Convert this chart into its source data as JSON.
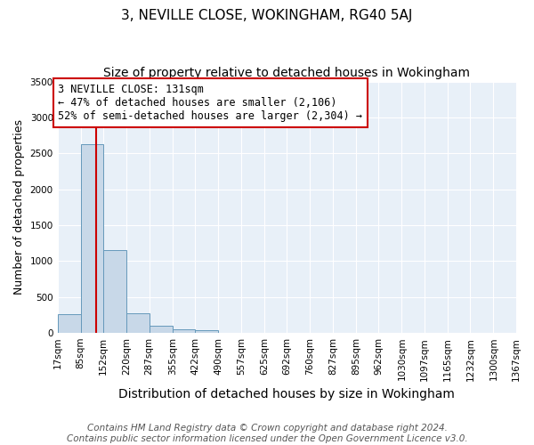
{
  "title": "3, NEVILLE CLOSE, WOKINGHAM, RG40 5AJ",
  "subtitle": "Size of property relative to detached houses in Wokingham",
  "xlabel": "Distribution of detached houses by size in Wokingham",
  "ylabel": "Number of detached properties",
  "bar_edges": [
    17,
    85,
    152,
    220,
    287,
    355,
    422,
    490,
    557,
    625,
    692,
    760,
    827,
    895,
    962,
    1030,
    1097,
    1165,
    1232,
    1300,
    1367
  ],
  "bar_heights": [
    260,
    2630,
    1150,
    270,
    100,
    45,
    35,
    0,
    0,
    0,
    0,
    0,
    0,
    0,
    0,
    0,
    0,
    0,
    0,
    0
  ],
  "bar_color": "#c8d8e8",
  "bar_edge_color": "#6699bb",
  "property_size": 131,
  "property_line_color": "#cc0000",
  "annotation_text": "3 NEVILLE CLOSE: 131sqm\n← 47% of detached houses are smaller (2,106)\n52% of semi-detached houses are larger (2,304) →",
  "annotation_box_color": "#cc0000",
  "ylim": [
    0,
    3500
  ],
  "yticks": [
    0,
    500,
    1000,
    1500,
    2000,
    2500,
    3000,
    3500
  ],
  "background_color": "#e8f0f8",
  "grid_color": "#ffffff",
  "footer_text": "Contains HM Land Registry data © Crown copyright and database right 2024.\nContains public sector information licensed under the Open Government Licence v3.0.",
  "title_fontsize": 11,
  "subtitle_fontsize": 10,
  "xlabel_fontsize": 10,
  "ylabel_fontsize": 9,
  "tick_fontsize": 7.5,
  "annotation_fontsize": 8.5,
  "footer_fontsize": 7.5
}
